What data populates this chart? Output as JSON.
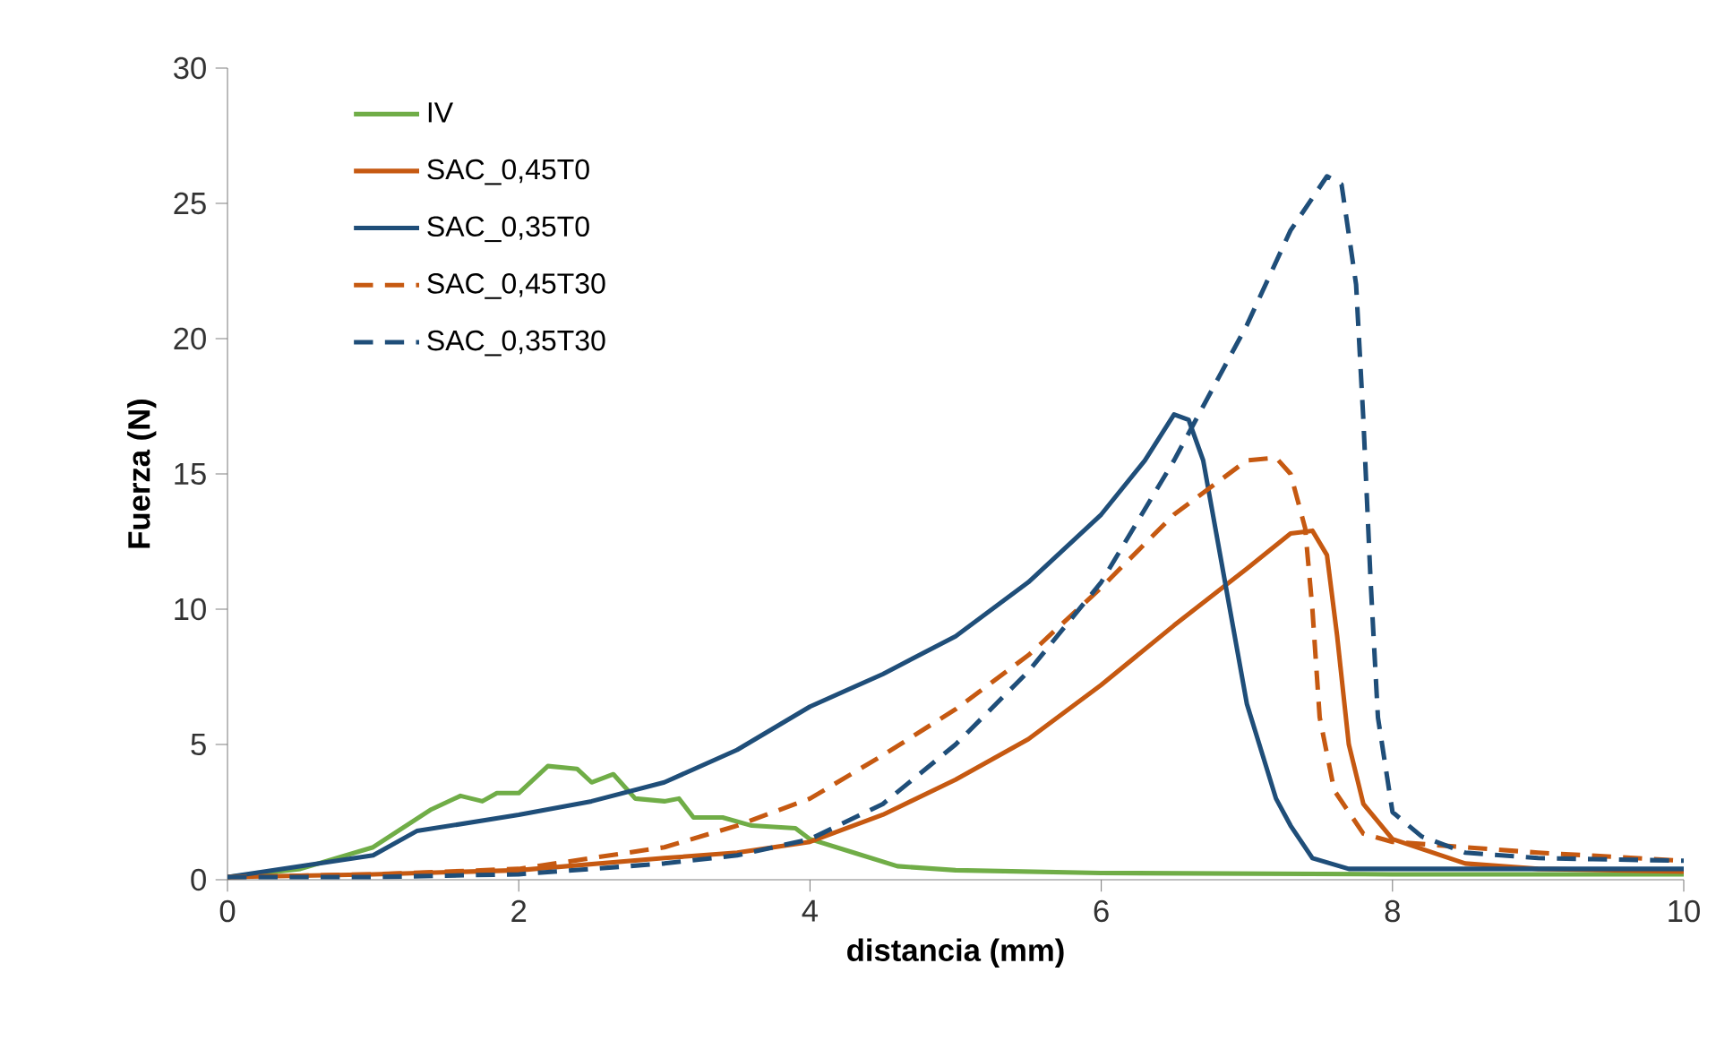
{
  "chart_data": {
    "type": "line",
    "xlabel": "distancia (mm)",
    "ylabel": "Fuerza (N)",
    "xlim": [
      0,
      10
    ],
    "ylim": [
      0,
      30
    ],
    "xticks": [
      0,
      2,
      4,
      6,
      8,
      10
    ],
    "yticks": [
      0,
      5,
      10,
      15,
      20,
      25,
      30
    ],
    "legend": "top left",
    "series": [
      {
        "name": "IV",
        "color": "#70ad47",
        "line_style": "solid",
        "x": [
          0,
          0.5,
          1,
          1.4,
          1.6,
          1.75,
          1.85,
          2.0,
          2.2,
          2.4,
          2.5,
          2.65,
          2.8,
          3.0,
          3.1,
          3.2,
          3.4,
          3.6,
          3.9,
          4.0,
          4.3,
          4.6,
          5,
          6,
          8,
          10
        ],
        "values": [
          0.1,
          0.4,
          1.2,
          2.6,
          3.1,
          2.9,
          3.2,
          3.2,
          4.2,
          4.1,
          3.6,
          3.9,
          3.0,
          2.9,
          3.0,
          2.3,
          2.3,
          2.0,
          1.9,
          1.5,
          1.0,
          0.5,
          0.35,
          0.25,
          0.2,
          0.2
        ]
      },
      {
        "name": "SAC_0,45T0",
        "color": "#c65911",
        "line_style": "solid",
        "x": [
          0,
          1,
          2,
          3,
          3.5,
          4,
          4.5,
          5,
          5.5,
          6,
          6.5,
          7,
          7.3,
          7.45,
          7.55,
          7.62,
          7.7,
          7.8,
          8.0,
          8.5,
          9,
          10
        ],
        "values": [
          0.1,
          0.2,
          0.35,
          0.8,
          1.0,
          1.4,
          2.4,
          3.7,
          5.2,
          7.2,
          9.4,
          11.5,
          12.8,
          12.9,
          12.0,
          9,
          5,
          2.8,
          1.5,
          0.6,
          0.4,
          0.3
        ]
      },
      {
        "name": "SAC_0,35T0",
        "color": "#1f4e79",
        "line_style": "solid",
        "x": [
          0,
          0.5,
          1,
          1.3,
          2,
          2.5,
          3,
          3.5,
          4,
          4.5,
          5,
          5.5,
          6,
          6.3,
          6.5,
          6.6,
          6.7,
          6.85,
          7.0,
          7.2,
          7.3,
          7.45,
          7.7,
          8,
          10
        ],
        "values": [
          0.1,
          0.5,
          0.9,
          1.8,
          2.4,
          2.9,
          3.6,
          4.8,
          6.4,
          7.6,
          9.0,
          11.0,
          13.5,
          15.5,
          17.2,
          17.0,
          15.5,
          11,
          6.5,
          3.0,
          2.0,
          0.8,
          0.4,
          0.4,
          0.4
        ]
      },
      {
        "name": "SAC_0,45T30",
        "color": "#c65911",
        "line_style": "dashed",
        "x": [
          0,
          1,
          2,
          2.5,
          3,
          3.5,
          4,
          4.5,
          5,
          5.5,
          6,
          6.5,
          7,
          7.2,
          7.3,
          7.4,
          7.45,
          7.5,
          7.6,
          7.8,
          8,
          9,
          10
        ],
        "values": [
          0.1,
          0.2,
          0.4,
          0.8,
          1.2,
          2,
          3.0,
          4.6,
          6.3,
          8.3,
          10.8,
          13.5,
          15.5,
          15.6,
          15.0,
          13,
          10,
          6,
          3.3,
          1.7,
          1.4,
          1.0,
          0.7
        ]
      },
      {
        "name": "SAC_0,35T30",
        "color": "#1f4e79",
        "line_style": "dashed",
        "x": [
          0,
          1,
          2,
          3,
          3.5,
          4,
          4.5,
          5,
          5.5,
          6,
          6.5,
          7,
          7.3,
          7.55,
          7.65,
          7.75,
          7.8,
          7.85,
          7.9,
          8.0,
          8.2,
          8.5,
          9,
          10
        ],
        "values": [
          0.1,
          0.1,
          0.2,
          0.6,
          0.9,
          1.5,
          2.8,
          5,
          7.7,
          11.0,
          15.5,
          20.5,
          24.0,
          26.0,
          25.7,
          22,
          17,
          11,
          6,
          2.5,
          1.6,
          1.0,
          0.8,
          0.7
        ]
      }
    ]
  }
}
